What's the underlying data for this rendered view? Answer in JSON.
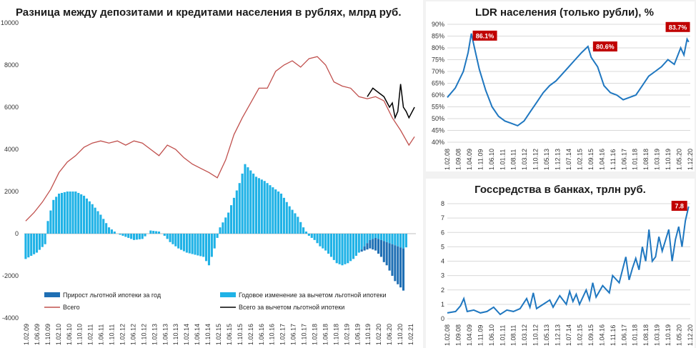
{
  "colors": {
    "total": "#c0504d",
    "net": "#000000",
    "bar_light": "#1fb2e6",
    "bar_dark": "#1f6fb4",
    "ldr": "#1f77c0",
    "gov": "#1f77c0",
    "badge": "#c00000"
  },
  "left": {
    "chart_data": {
      "type": "bar+line",
      "title": "Разница между депозитами и кредитами населения в рублях, млрд руб.",
      "yticks": [
        "10000",
        "8000",
        "6000",
        "4000",
        "2000",
        "0",
        "-2000",
        "-4000"
      ],
      "ylim": [
        -4000,
        10000
      ],
      "xticks": [
        "1.02.09",
        "1.06.09",
        "1.10.09",
        "1.02.10",
        "1.06.10",
        "1.10.10",
        "1.02.11",
        "1.06.11",
        "1.10.11",
        "1.02.12",
        "1.06.12",
        "1.10.12",
        "1.02.13",
        "1.06.13",
        "1.10.13",
        "1.02.14",
        "1.06.14",
        "1.10.14",
        "1.02.15",
        "1.06.15",
        "1.10.15",
        "1.02.16",
        "1.06.16",
        "1.10.16",
        "1.02.17",
        "1.06.17",
        "1.10.17",
        "1.02.18",
        "1.06.18",
        "1.10.18",
        "1.02.19",
        "1.06.19",
        "1.10.19",
        "1.02.20",
        "1.06.20",
        "1.10.20",
        "1.02.21"
      ],
      "legend": {
        "mortgage": "Прирост льготной ипотеки за год",
        "yoy": "Годовое изменение за вычетом льготной ипотеки",
        "total": "Всего",
        "net": "Всего за вычетом льготной ипотеки"
      },
      "total_points": [
        [
          0,
          600
        ],
        [
          3,
          1000
        ],
        [
          6,
          1500
        ],
        [
          9,
          2100
        ],
        [
          12,
          2900
        ],
        [
          15,
          3400
        ],
        [
          18,
          3700
        ],
        [
          21,
          4100
        ],
        [
          24,
          4300
        ],
        [
          27,
          4400
        ],
        [
          30,
          4300
        ],
        [
          33,
          4400
        ],
        [
          36,
          4200
        ],
        [
          39,
          4400
        ],
        [
          42,
          4300
        ],
        [
          45,
          4000
        ],
        [
          48,
          3700
        ],
        [
          51,
          4200
        ],
        [
          54,
          4000
        ],
        [
          57,
          3600
        ],
        [
          60,
          3300
        ],
        [
          63,
          3100
        ],
        [
          66,
          2900
        ],
        [
          69,
          2650
        ],
        [
          72,
          3500
        ],
        [
          75,
          4700
        ],
        [
          78,
          5500
        ],
        [
          81,
          6200
        ],
        [
          84,
          6900
        ],
        [
          87,
          6900
        ],
        [
          90,
          7700
        ],
        [
          93,
          8000
        ],
        [
          96,
          8200
        ],
        [
          99,
          7900
        ],
        [
          102,
          8300
        ],
        [
          105,
          8400
        ],
        [
          108,
          8000
        ],
        [
          111,
          7200
        ],
        [
          114,
          7000
        ],
        [
          117,
          6900
        ],
        [
          120,
          6500
        ],
        [
          123,
          6400
        ],
        [
          126,
          6500
        ],
        [
          129,
          6300
        ],
        [
          132,
          5500
        ],
        [
          135,
          4900
        ],
        [
          138,
          4200
        ],
        [
          140,
          4600
        ]
      ],
      "net_points": [
        [
          123,
          6500
        ],
        [
          125,
          6900
        ],
        [
          127,
          6700
        ],
        [
          129,
          6500
        ],
        [
          131,
          6000
        ],
        [
          132,
          6200
        ],
        [
          133,
          5500
        ],
        [
          134,
          5800
        ],
        [
          135,
          7100
        ],
        [
          136,
          6000
        ],
        [
          137,
          5800
        ],
        [
          138,
          5500
        ],
        [
          140,
          6000
        ]
      ],
      "mortgage_series": [
        [
          121,
          -100
        ],
        [
          122,
          -200
        ],
        [
          123,
          -300
        ],
        [
          124,
          -400
        ],
        [
          125,
          -500
        ],
        [
          126,
          -600
        ],
        [
          127,
          -700
        ],
        [
          128,
          -800
        ],
        [
          129,
          -1000
        ],
        [
          130,
          -1100
        ],
        [
          131,
          -1300
        ],
        [
          132,
          -1500
        ],
        [
          133,
          -1700
        ],
        [
          134,
          -1800
        ],
        [
          135,
          -1900
        ],
        [
          136,
          -2000
        ]
      ],
      "yoy_points": [
        [
          0,
          -1200
        ],
        [
          4,
          -900
        ],
        [
          7,
          -500
        ],
        [
          8,
          600
        ],
        [
          10,
          1600
        ],
        [
          12,
          1900
        ],
        [
          15,
          2000
        ],
        [
          18,
          2000
        ],
        [
          21,
          1800
        ],
        [
          24,
          1400
        ],
        [
          27,
          900
        ],
        [
          30,
          300
        ],
        [
          33,
          0
        ],
        [
          36,
          -150
        ],
        [
          39,
          -300
        ],
        [
          42,
          -250
        ],
        [
          44,
          0
        ],
        [
          45,
          150
        ],
        [
          48,
          100
        ],
        [
          50,
          -100
        ],
        [
          52,
          -400
        ],
        [
          55,
          -700
        ],
        [
          58,
          -900
        ],
        [
          61,
          -1000
        ],
        [
          64,
          -1100
        ],
        [
          66,
          -1500
        ],
        [
          68,
          -700
        ],
        [
          70,
          300
        ],
        [
          73,
          1000
        ],
        [
          75,
          1700
        ],
        [
          77,
          2400
        ],
        [
          79,
          3300
        ],
        [
          81,
          3000
        ],
        [
          83,
          2700
        ],
        [
          86,
          2500
        ],
        [
          89,
          2200
        ],
        [
          92,
          1900
        ],
        [
          95,
          1300
        ],
        [
          98,
          800
        ],
        [
          100,
          300
        ],
        [
          102,
          -100
        ],
        [
          104,
          -300
        ],
        [
          106,
          -600
        ],
        [
          108,
          -800
        ],
        [
          110,
          -1100
        ],
        [
          112,
          -1400
        ],
        [
          114,
          -1500
        ],
        [
          116,
          -1400
        ],
        [
          118,
          -1200
        ],
        [
          120,
          -900
        ],
        [
          122,
          -600
        ],
        [
          124,
          -300
        ],
        [
          126,
          -200
        ],
        [
          128,
          -300
        ],
        [
          130,
          -400
        ],
        [
          132,
          -500
        ],
        [
          134,
          -600
        ],
        [
          136,
          -700
        ],
        [
          137,
          -650
        ]
      ]
    }
  },
  "ldr": {
    "chart_data": {
      "type": "line",
      "title": "LDR населения (только рубли), %",
      "yticks": [
        "90%",
        "85%",
        "80%",
        "75%",
        "70%",
        "65%",
        "60%",
        "55%",
        "50%",
        "45%",
        "40%"
      ],
      "ylim": [
        40,
        90
      ],
      "xticks": [
        "1.02.08",
        "1.09.08",
        "1.04.09",
        "1.11.09",
        "1.06.10",
        "1.01.11",
        "1.08.11",
        "1.03.12",
        "1.10.12",
        "1.05.13",
        "1.12.13",
        "1.07.14",
        "1.02.15",
        "1.09.15",
        "1.04.16",
        "1.11.16",
        "1.06.17",
        "1.01.18",
        "1.08.18",
        "1.03.19",
        "1.10.19",
        "1.05.20",
        "1.12.20"
      ],
      "labels": [
        "86.1%",
        "80.6%",
        "83.7%"
      ],
      "points": [
        [
          0,
          59
        ],
        [
          5,
          63
        ],
        [
          10,
          70
        ],
        [
          13,
          78
        ],
        [
          15,
          86.1
        ],
        [
          17,
          80
        ],
        [
          20,
          71
        ],
        [
          24,
          62
        ],
        [
          28,
          55
        ],
        [
          32,
          51
        ],
        [
          36,
          49
        ],
        [
          40,
          48
        ],
        [
          44,
          47
        ],
        [
          48,
          49
        ],
        [
          52,
          53
        ],
        [
          56,
          57
        ],
        [
          60,
          61
        ],
        [
          64,
          64
        ],
        [
          68,
          66
        ],
        [
          72,
          69
        ],
        [
          76,
          72
        ],
        [
          80,
          75
        ],
        [
          84,
          78
        ],
        [
          88,
          80.6
        ],
        [
          90,
          76
        ],
        [
          94,
          72
        ],
        [
          98,
          64
        ],
        [
          102,
          61
        ],
        [
          106,
          60
        ],
        [
          110,
          58
        ],
        [
          114,
          59
        ],
        [
          118,
          60
        ],
        [
          122,
          64
        ],
        [
          126,
          68
        ],
        [
          130,
          70
        ],
        [
          134,
          72
        ],
        [
          138,
          75
        ],
        [
          142,
          73
        ],
        [
          146,
          80
        ],
        [
          148,
          77
        ],
        [
          150,
          83.7
        ],
        [
          151,
          82.5
        ]
      ]
    }
  },
  "gov": {
    "chart_data": {
      "type": "line",
      "title": "Госсредства в банках, трлн руб.",
      "yticks": [
        "8",
        "7",
        "6",
        "5",
        "4",
        "3",
        "2",
        "1",
        "0"
      ],
      "ylim": [
        0,
        8
      ],
      "xticks": [
        "1.02.08",
        "1.09.08",
        "1.04.09",
        "1.11.09",
        "1.06.10",
        "1.01.11",
        "1.08.11",
        "1.03.12",
        "1.10.12",
        "1.05.13",
        "1.12.13",
        "1.07.14",
        "1.02.15",
        "1.09.15",
        "1.04.16",
        "1.11.16",
        "1.06.17",
        "1.01.18",
        "1.08.18",
        "1.03.19",
        "1.10.19",
        "1.05.20",
        "1.12.20"
      ],
      "label": "7.8",
      "points": [
        [
          0,
          0.4
        ],
        [
          5,
          0.5
        ],
        [
          8,
          0.9
        ],
        [
          10,
          1.4
        ],
        [
          12,
          0.5
        ],
        [
          16,
          0.6
        ],
        [
          20,
          0.4
        ],
        [
          24,
          0.5
        ],
        [
          28,
          0.8
        ],
        [
          32,
          0.3
        ],
        [
          36,
          0.6
        ],
        [
          40,
          0.5
        ],
        [
          44,
          0.7
        ],
        [
          48,
          1.4
        ],
        [
          50,
          0.8
        ],
        [
          52,
          1.8
        ],
        [
          54,
          0.7
        ],
        [
          58,
          1.0
        ],
        [
          62,
          1.3
        ],
        [
          64,
          0.8
        ],
        [
          68,
          1.6
        ],
        [
          72,
          1.0
        ],
        [
          74,
          1.9
        ],
        [
          76,
          1.2
        ],
        [
          78,
          1.7
        ],
        [
          80,
          1.0
        ],
        [
          84,
          2.0
        ],
        [
          86,
          1.3
        ],
        [
          88,
          2.5
        ],
        [
          90,
          1.5
        ],
        [
          94,
          2.3
        ],
        [
          98,
          1.8
        ],
        [
          100,
          3.0
        ],
        [
          104,
          2.5
        ],
        [
          108,
          4.3
        ],
        [
          110,
          2.7
        ],
        [
          112,
          3.5
        ],
        [
          114,
          4.2
        ],
        [
          116,
          3.4
        ],
        [
          118,
          5.0
        ],
        [
          120,
          4.0
        ],
        [
          122,
          6.2
        ],
        [
          124,
          4.0
        ],
        [
          126,
          4.3
        ],
        [
          128,
          5.7
        ],
        [
          130,
          4.7
        ],
        [
          134,
          6.2
        ],
        [
          136,
          4.0
        ],
        [
          138,
          5.5
        ],
        [
          140,
          6.4
        ],
        [
          142,
          5.0
        ],
        [
          144,
          6.8
        ],
        [
          146,
          7.8
        ]
      ]
    }
  }
}
